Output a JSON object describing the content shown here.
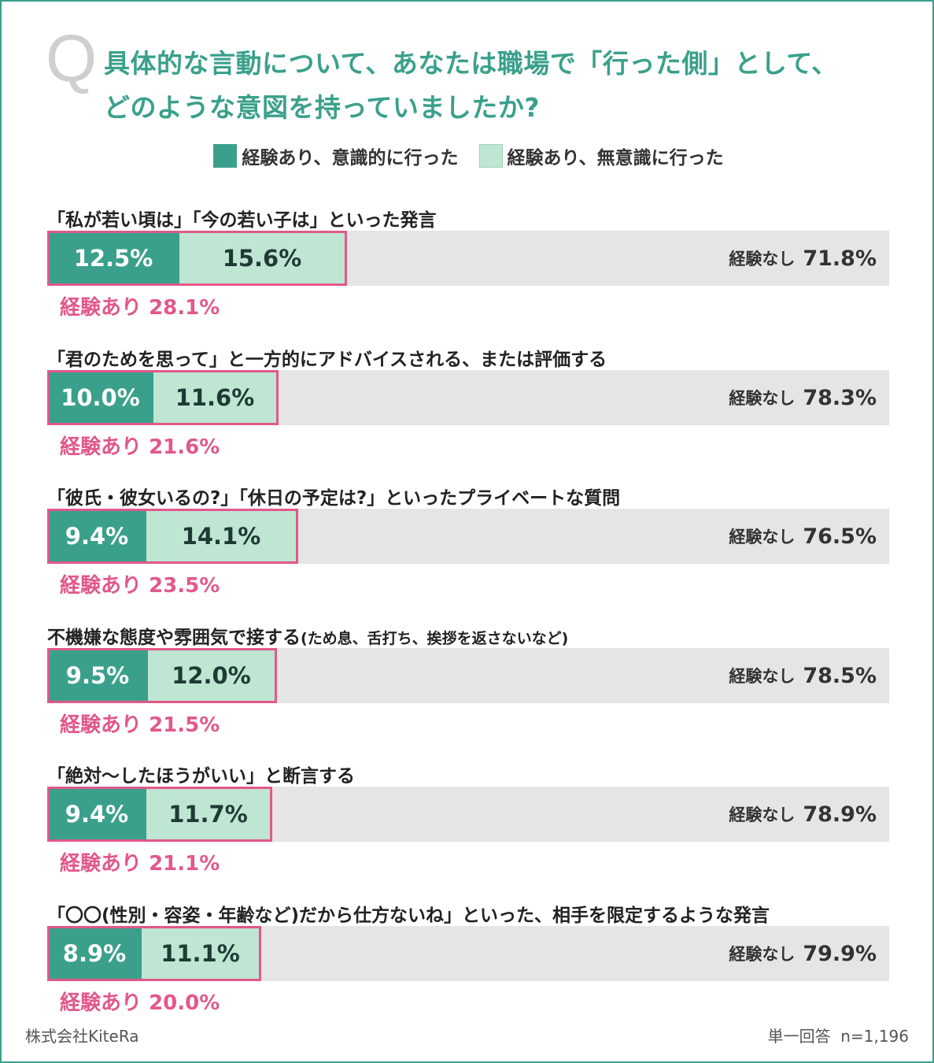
{
  "question_mark": "Q",
  "title": {
    "line1": "具体的な言動について、あなたは職場で「行った側」として、",
    "line2": "どのような意図を持っていましたか?"
  },
  "legend": [
    {
      "label": "経験あり、意識的に行った",
      "color": "#3aa08c"
    },
    {
      "label": "経験あり、無意識に行った",
      "color": "#bfe5d3"
    }
  ],
  "none_label": "経験なし",
  "experience_label": "経験あり",
  "colors": {
    "intentional": "#3aa08c",
    "unintentional": "#bfe5d3",
    "none": "#e5e5e5",
    "highlight": "#e2588a",
    "title": "#3aa08c"
  },
  "chart_data": {
    "type": "bar",
    "orientation": "horizontal",
    "stacked": true,
    "title": "具体的な言動について、あなたは職場で「行った側」として、どのような意図を持っていましたか?",
    "categories": [
      "「私が若い頃は」「今の若い子は」といった発言",
      "「君のためを思って」と一方的にアドバイスされる、または評価する",
      "「彼氏・彼女いるの?」「休日の予定は?」といったプライベートな質問",
      "不機嫌な態度や雰囲気で接する",
      "「絶対〜したほうがいい」と断言する",
      "「〇〇(性別・容姿・年齢など)だから仕方ないね」といった、相手を限定するような発言"
    ],
    "category_notes": [
      "",
      "",
      "",
      "(ため息、舌打ち、挨拶を返さないなど)",
      "",
      ""
    ],
    "series": [
      {
        "name": "経験あり、意識的に行った",
        "values": [
          12.5,
          10.0,
          9.4,
          9.5,
          9.4,
          8.9
        ]
      },
      {
        "name": "経験あり、無意識に行った",
        "values": [
          15.6,
          11.6,
          14.1,
          12.0,
          11.7,
          11.1
        ]
      },
      {
        "name": "経験なし",
        "values": [
          71.8,
          78.3,
          76.5,
          78.5,
          78.9,
          79.9
        ]
      }
    ],
    "experience_total": [
      28.1,
      21.6,
      23.5,
      21.5,
      21.1,
      20.0
    ],
    "xlim": [
      0,
      100
    ],
    "unit": "%"
  },
  "footer": {
    "company": "株式会社KiteRa",
    "answer_type": "単一回答",
    "sample": "n=1,196"
  }
}
